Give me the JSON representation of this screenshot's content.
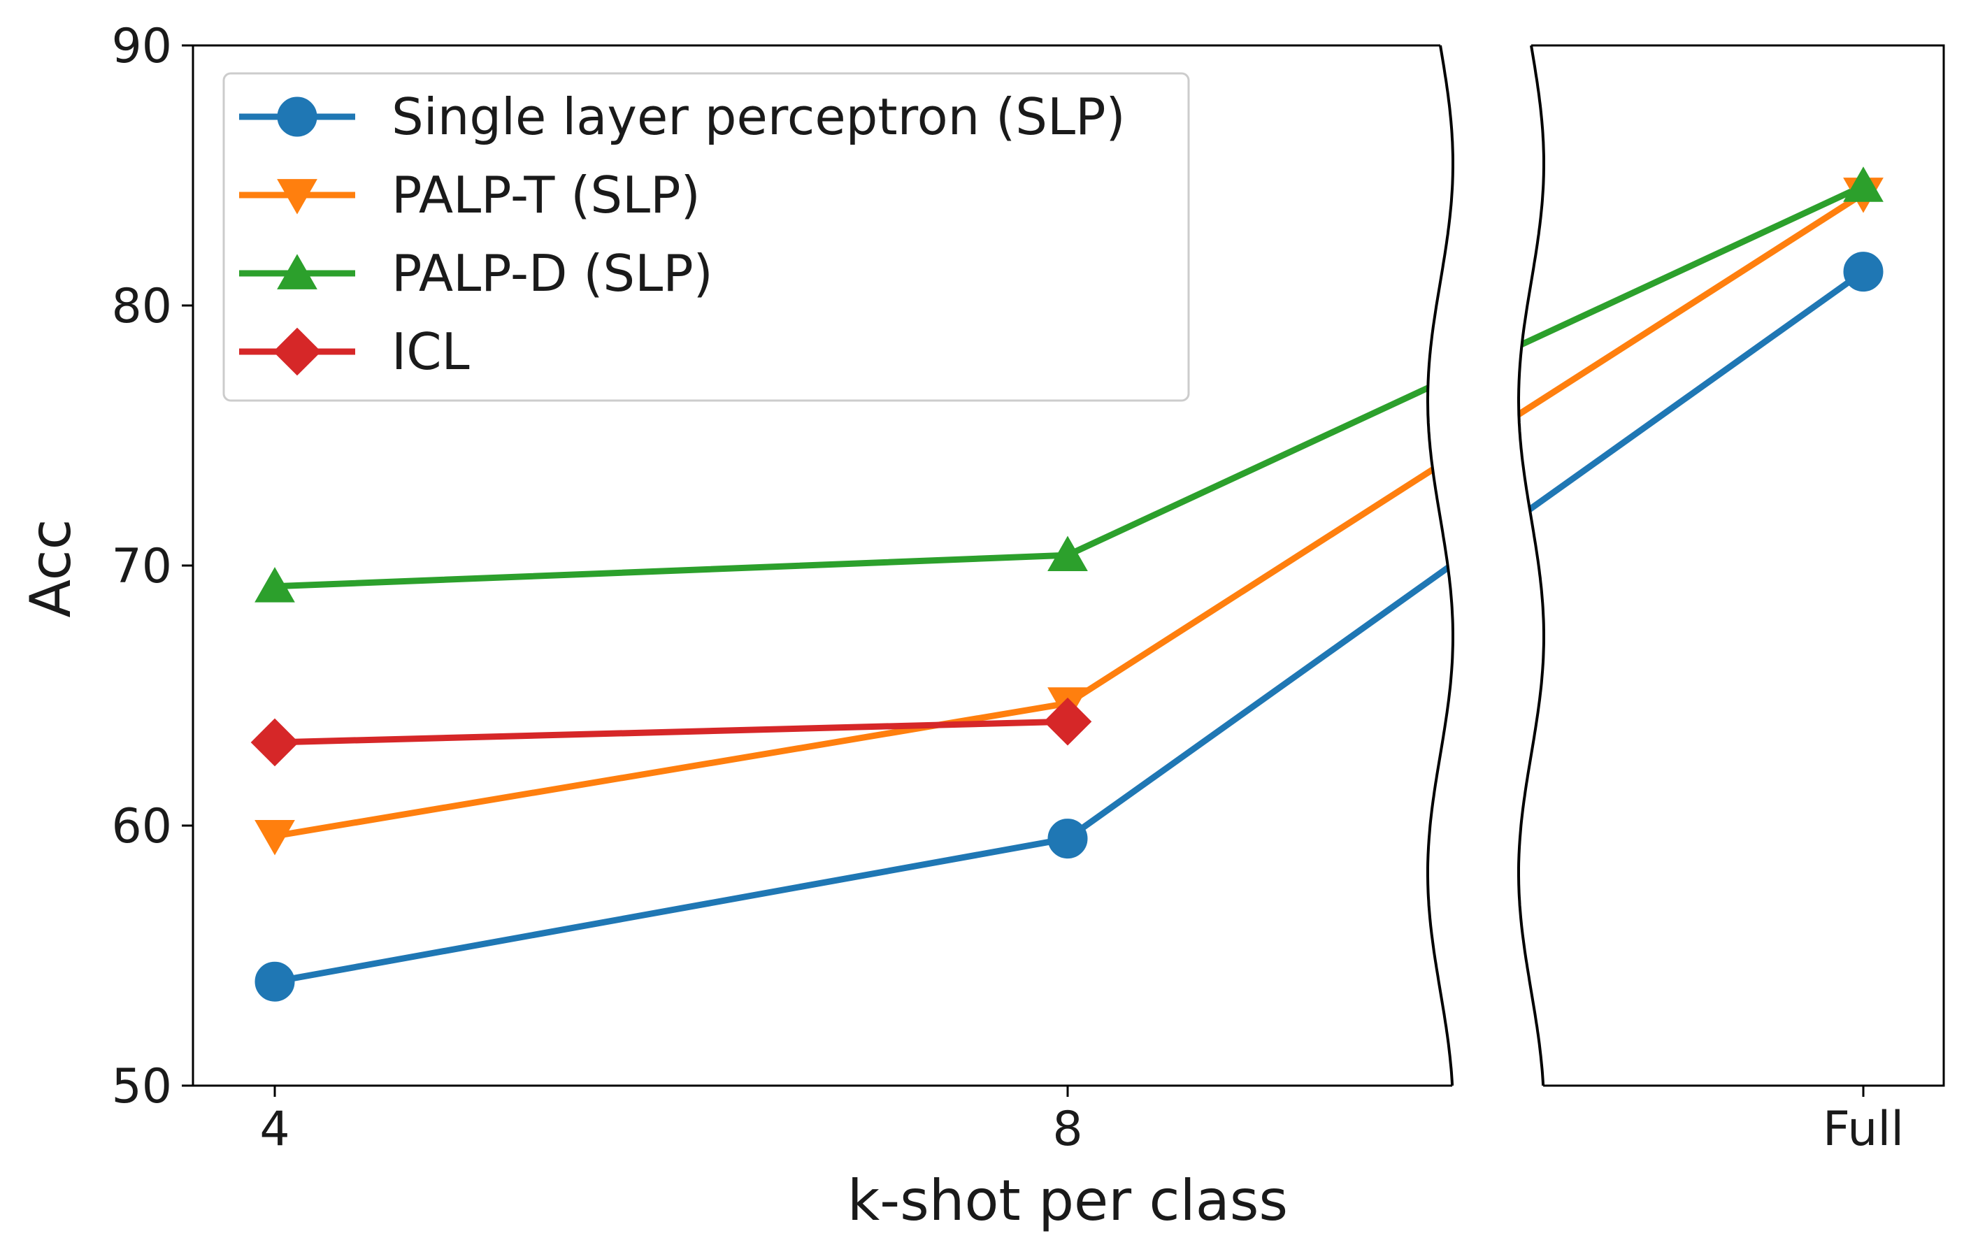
{
  "chart_data": {
    "type": "line",
    "categories": [
      "4",
      "8",
      "Full"
    ],
    "xlabel": "k-shot per class",
    "ylabel": "Acc",
    "ylim": [
      50,
      90
    ],
    "yticks": [
      "50",
      "60",
      "70",
      "80",
      "90"
    ],
    "x_axis_break": "between 8 and Full",
    "grid": false,
    "legend_position": "top-left",
    "series": [
      {
        "name": "Single layer perceptron (SLP)",
        "color": "#1f77b4",
        "marker": "circle",
        "values": [
          54.0,
          59.5,
          81.3
        ]
      },
      {
        "name": "PALP-T (SLP)",
        "color": "#ff7f0e",
        "marker": "triangle-down",
        "values": [
          59.6,
          64.7,
          84.3
        ]
      },
      {
        "name": "PALP-D (SLP)",
        "color": "#2ca02c",
        "marker": "triangle-up",
        "values": [
          69.2,
          70.4,
          84.6
        ]
      },
      {
        "name": "ICL",
        "color": "#d62728",
        "marker": "diamond",
        "values": [
          63.2,
          64.0,
          null
        ]
      }
    ]
  }
}
